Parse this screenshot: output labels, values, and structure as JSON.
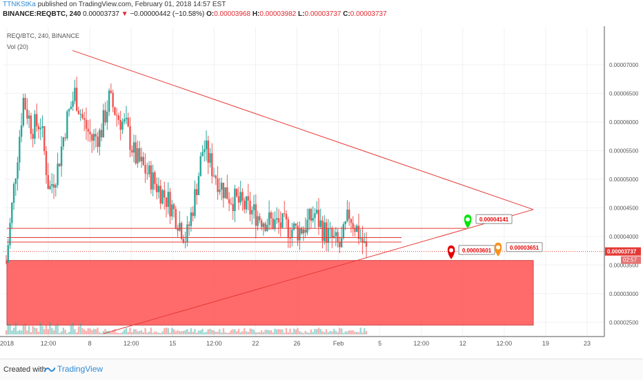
{
  "header": {
    "author": "TTNKStKa",
    "published": " published on TradingView.com, February 01, 2018 14:57 EST",
    "symbol": "BINANCE:REQBTC, 240",
    "price": "0.00003737",
    "arrow": "▼",
    "change": "−0.00000442 (−10.58%)",
    "o_label": "O:",
    "o": "0.00003968",
    "h_label": "H:",
    "h": "0.00003982",
    "l_label": "L:",
    "l": "0.00003737",
    "c_label": "C:",
    "c": "0.00003737"
  },
  "legend": {
    "symbol": "REQ/BTC, 240, BINANCE",
    "volume": "Vol (20)"
  },
  "footer": {
    "created_with": "Created with",
    "brand": "TradingView"
  },
  "colors": {
    "up": "#26a69a",
    "down": "#ef5350",
    "zone": "#ff5252",
    "line": "#e53935",
    "green_marker": "#00e60a",
    "red_marker": "#e60000",
    "orange_marker": "#f7941d"
  },
  "chart_data": {
    "type": "candlestick",
    "symbol": "REQ/BTC",
    "interval": "240",
    "exchange": "BINANCE",
    "y_ticks": [
      "0.00007000",
      "0.00006500",
      "0.00006000",
      "0.00005500",
      "0.00005000",
      "0.00004500",
      "0.00004000",
      "0.00003500",
      "0.00003000",
      "0.00002500"
    ],
    "x_ticks": [
      "2018",
      "12:00",
      "8",
      "12:00",
      "15",
      "12:00",
      "22",
      "26",
      "Feb",
      "5",
      "12:00",
      "12",
      "12:00",
      "19",
      "23"
    ],
    "current_price_label": "0.00003737",
    "countdown_label": "02:57",
    "ylim": [
      2.25e-05,
      7.65e-05
    ],
    "price_path": [
      3.55e-05,
      5e-05,
      6.4e-05,
      5.9e-05,
      6e-05,
      4.8e-05,
      5.2e-05,
      6e-05,
      6.5e-05,
      6e-05,
      5.7e-05,
      5.8e-05,
      6.4e-05,
      6.1e-05,
      5.9e-05,
      5.4e-05,
      5.2e-05,
      5e-05,
      4.8e-05,
      4.6e-05,
      4.3e-05,
      3.95e-05,
      4.7e-05,
      5.6e-05,
      5.2e-05,
      4.9e-05,
      4.7e-05,
      4.6e-05,
      4.5e-05,
      4.4e-05,
      4.3e-05,
      4.25e-05,
      4.2e-05,
      4.15e-05,
      4.1e-05,
      4.2e-05,
      4.4e-05,
      4.1e-05,
      3.95e-05,
      3.8e-05,
      4.4e-05,
      4.1e-05,
      3.74e-05
    ],
    "horizontal_levels": [
      4.141e-05,
      3.98e-05,
      3.901e-05
    ],
    "annotations": [
      {
        "label": "0.00004141",
        "marker": "green",
        "value": 4.141e-05
      },
      {
        "label": "0.00003601",
        "marker": "red",
        "value": 3.601e-05
      },
      {
        "label": "0.00003651",
        "marker": "orange",
        "value": 3.651e-05
      }
    ],
    "support_zone": [
      2.45e-05,
      3.58e-05
    ],
    "triangle": {
      "apex_price": 4.47e-05,
      "top_price": 7.25e-05,
      "bottom_price": 2.3e-05
    }
  }
}
